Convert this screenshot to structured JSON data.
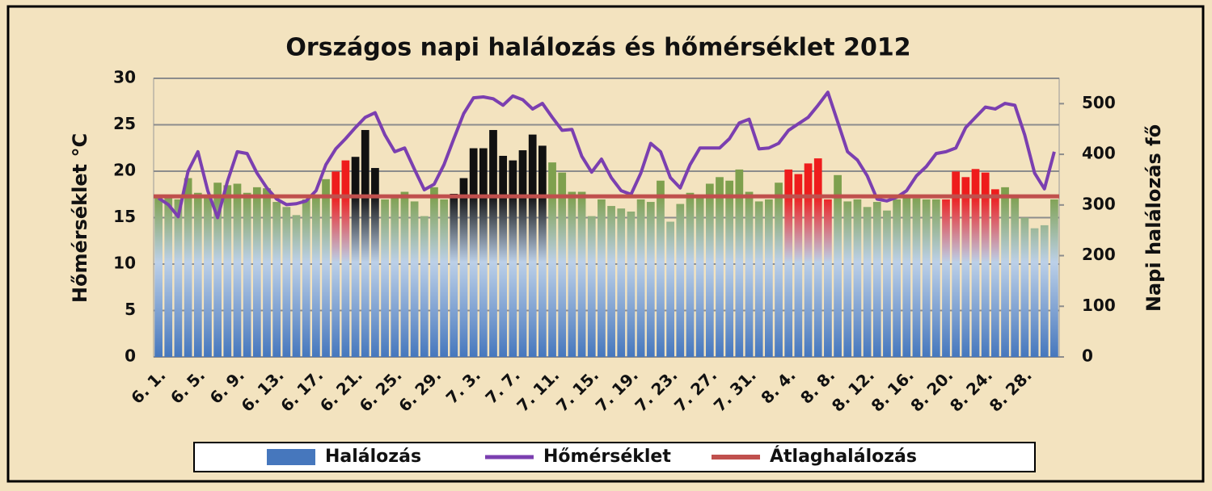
{
  "chart_data": {
    "type": "bar",
    "title": "Országos napi halálozás és hőmérséklet  2012",
    "y_label": "Hőmérséklet °C",
    "y2_label": "Napi halálozás fő",
    "categories": [
      "6. 1.",
      null,
      null,
      null,
      "6. 5.",
      null,
      null,
      null,
      "6. 9.",
      null,
      null,
      null,
      "6. 13.",
      null,
      null,
      null,
      "6. 17.",
      null,
      null,
      null,
      "6. 21.",
      null,
      null,
      null,
      "6. 25.",
      null,
      null,
      null,
      "6. 29.",
      null,
      null,
      null,
      "7. 3.",
      null,
      null,
      null,
      "7. 7.",
      null,
      null,
      null,
      "7. 11.",
      null,
      null,
      null,
      "7. 15.",
      null,
      null,
      null,
      "7. 19.",
      null,
      null,
      null,
      "7. 23.",
      null,
      null,
      null,
      "7. 27.",
      null,
      null,
      null,
      "7. 31.",
      null,
      null,
      null,
      "8. 4.",
      null,
      null,
      null,
      "8. 8.",
      null,
      null,
      null,
      "8. 12.",
      null,
      null,
      null,
      "8. 16.",
      null,
      null,
      null,
      "8. 20.",
      null,
      null,
      null,
      "8. 24.",
      null,
      null,
      null,
      "8. 28.",
      null,
      null,
      null
    ],
    "series": [
      {
        "name": "Halálozás",
        "type": "bar",
        "axis": "y2",
        "color": "#7ea04e",
        "values": [
          320,
          317,
          311,
          353,
          324,
          320,
          344,
          339,
          342,
          324,
          335,
          333,
          306,
          296,
          280,
          311,
          317,
          351,
          366,
          388,
          395,
          448,
          373,
          311,
          317,
          326,
          307,
          278,
          335,
          311,
          322,
          353,
          412,
          412,
          448,
          397,
          388,
          408,
          439,
          417,
          384,
          364,
          326,
          326,
          278,
          311,
          298,
          293,
          287,
          311,
          306,
          348,
          267,
          302,
          324,
          320,
          342,
          355,
          348,
          370,
          326,
          307,
          311,
          344,
          370,
          361,
          382,
          392,
          311,
          359,
          307,
          311,
          296,
          306,
          289,
          311,
          317,
          313,
          311,
          311,
          311,
          366,
          355,
          371,
          364,
          331,
          335,
          318,
          275,
          254,
          260,
          311
        ],
        "colors": [
          "#7ea04e",
          "#7ea04e",
          "#7ea04e",
          "#7ea04e",
          "#7ea04e",
          "#7ea04e",
          "#7ea04e",
          "#7ea04e",
          "#7ea04e",
          "#7ea04e",
          "#7ea04e",
          "#7ea04e",
          "#7ea04e",
          "#7ea04e",
          "#7ea04e",
          "#7ea04e",
          "#7ea04e",
          "#7ea04e",
          "#ee1c1c",
          "#ee1c1c",
          "#111111",
          "#111111",
          "#111111",
          "#7ea04e",
          "#7ea04e",
          "#7ea04e",
          "#7ea04e",
          "#7ea04e",
          "#7ea04e",
          "#7ea04e",
          "#111111",
          "#111111",
          "#111111",
          "#111111",
          "#111111",
          "#111111",
          "#111111",
          "#111111",
          "#111111",
          "#111111",
          "#7ea04e",
          "#7ea04e",
          "#7ea04e",
          "#7ea04e",
          "#7ea04e",
          "#7ea04e",
          "#7ea04e",
          "#7ea04e",
          "#7ea04e",
          "#7ea04e",
          "#7ea04e",
          "#7ea04e",
          "#7ea04e",
          "#7ea04e",
          "#7ea04e",
          "#7ea04e",
          "#7ea04e",
          "#7ea04e",
          "#7ea04e",
          "#7ea04e",
          "#7ea04e",
          "#7ea04e",
          "#7ea04e",
          "#7ea04e",
          "#ee1c1c",
          "#ee1c1c",
          "#ee1c1c",
          "#ee1c1c",
          "#ee1c1c",
          "#7ea04e",
          "#7ea04e",
          "#7ea04e",
          "#7ea04e",
          "#7ea04e",
          "#7ea04e",
          "#7ea04e",
          "#7ea04e",
          "#7ea04e",
          "#7ea04e",
          "#7ea04e",
          "#ee1c1c",
          "#ee1c1c",
          "#ee1c1c",
          "#ee1c1c",
          "#ee1c1c",
          "#ee1c1c",
          "#7ea04e",
          "#7ea04e",
          "#7ea04e",
          "#7ea04e",
          "#7ea04e",
          "#7ea04e"
        ]
      },
      {
        "name": "Hőmérséklet",
        "type": "line",
        "axis": "y",
        "color": "#7b3fb0",
        "values": [
          17.1,
          16.4,
          15.1,
          20,
          22.1,
          17.9,
          15,
          18.9,
          22.1,
          21.9,
          19.8,
          18.2,
          17,
          16.4,
          16.5,
          16.8,
          17.9,
          20.7,
          22.4,
          23.5,
          24.7,
          25.8,
          26.3,
          23.9,
          22.1,
          22.5,
          20.2,
          18,
          18.6,
          20.7,
          23.5,
          26.2,
          27.9,
          28,
          27.8,
          27.1,
          28.1,
          27.7,
          26.7,
          27.3,
          25.8,
          24.4,
          24.5,
          21.6,
          19.9,
          21.3,
          19.3,
          17.9,
          17.5,
          19.8,
          23,
          22.1,
          19.3,
          18.2,
          20.7,
          22.5,
          22.5,
          22.5,
          23.5,
          25.2,
          25.6,
          22.4,
          22.5,
          23,
          24.4,
          25.1,
          25.8,
          27.1,
          28.5,
          25.3,
          22.1,
          21.2,
          19.5,
          17,
          16.8,
          17.2,
          17.9,
          19.5,
          20.5,
          21.9,
          22.1,
          22.5,
          24.7,
          25.8,
          26.9,
          26.7,
          27.3,
          27.1,
          23.9,
          19.8,
          18.1,
          22.1
        ]
      },
      {
        "name": "Átlaghalálozás",
        "type": "hline",
        "axis": "y2",
        "color": "#c0504d",
        "value": 317
      }
    ],
    "ylim": [
      0,
      30
    ],
    "yticks": [
      0,
      5,
      10,
      15,
      20,
      25,
      30
    ],
    "y2lim": [
      0,
      550
    ],
    "y2ticks": [
      0,
      100,
      200,
      300,
      400,
      500
    ],
    "grid": true,
    "legend": "bottom"
  }
}
